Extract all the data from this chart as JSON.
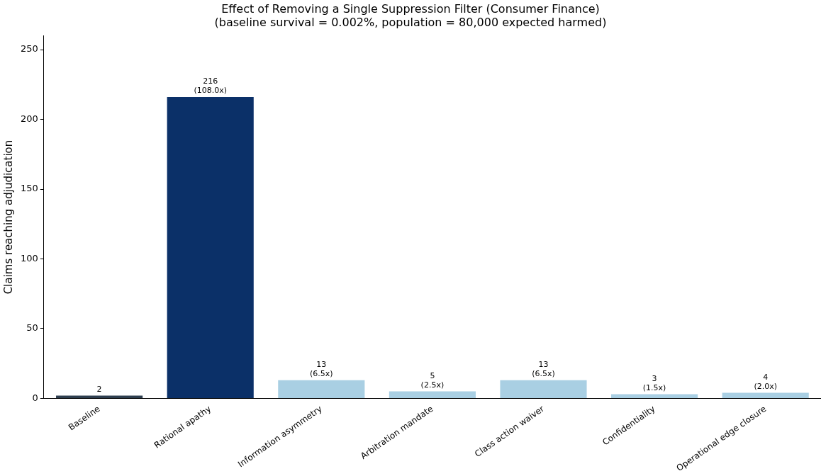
{
  "chart_data": {
    "type": "bar",
    "title": "Effect of Removing a Single Suppression Filter (Consumer Finance)",
    "subtitle": "(baseline survival = 0.002%, population = 80,000 expected harmed)",
    "ylabel": "Claims reaching adjudication",
    "categories": [
      "Baseline",
      "Rational apathy",
      "Information asymmetry",
      "Arbitration mandate",
      "Class action waiver",
      "Confidentiality",
      "Operational edge closure"
    ],
    "values": [
      2,
      216,
      13,
      5,
      13,
      3,
      4
    ],
    "colors": [
      "#2e3e4f",
      "#0b3068",
      "#a9cfe3",
      "#a9cfe3",
      "#a9cfe3",
      "#a9cfe3",
      "#a9cfe3"
    ],
    "value_labels": [
      "2",
      "216\n(108.0x)",
      "13\n(6.5x)",
      "5\n(2.5x)",
      "13\n(6.5x)",
      "3\n(1.5x)",
      "4\n(2.0x)"
    ],
    "ylim": [
      0,
      260
    ],
    "yticks": [
      0,
      50,
      100,
      150,
      200,
      250
    ],
    "grid": false,
    "legend": false
  }
}
